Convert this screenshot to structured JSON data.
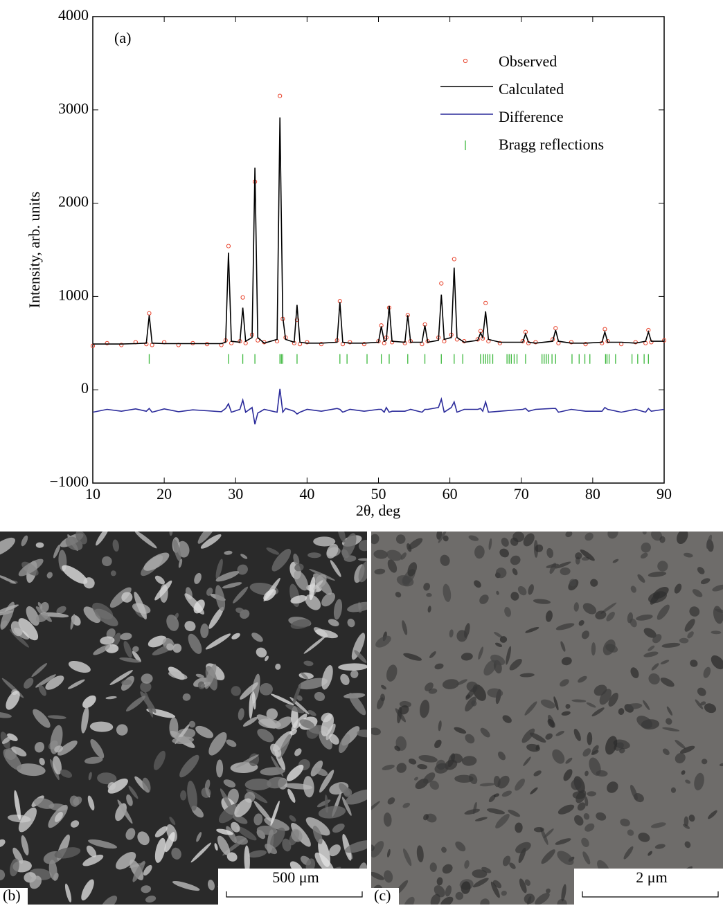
{
  "chart_data": {
    "type": "line",
    "annotations": [
      "(a)"
    ],
    "xlabel": "2θ, deg",
    "ylabel": "Intensity, arb. units",
    "xlim": [
      10,
      90
    ],
    "xticks": [
      10,
      20,
      30,
      40,
      50,
      60,
      70,
      80,
      90
    ],
    "ylim": [
      -1000,
      4000
    ],
    "yticks": [
      {
        "value": -1000,
        "label": "−1000"
      },
      0,
      1000,
      2000,
      3000,
      4000
    ],
    "legend": "upper right",
    "x": [
      10,
      12,
      14,
      16,
      17.5,
      17.9,
      18.3,
      20,
      22,
      24,
      26,
      28,
      28.6,
      29.0,
      29.4,
      30.6,
      31.0,
      31.4,
      32.3,
      32.7,
      33.1,
      34,
      35.8,
      36.2,
      36.6,
      37.0,
      38.2,
      38.6,
      39.0,
      40,
      42,
      44.2,
      44.6,
      45.0,
      46,
      48,
      50.0,
      50.4,
      50.8,
      51.1,
      51.5,
      51.9,
      53.7,
      54.1,
      54.5,
      56.1,
      56.5,
      56.9,
      58.4,
      58.8,
      59.2,
      60.2,
      60.6,
      61.0,
      62,
      63.9,
      64.3,
      64.6,
      65.0,
      65.4,
      67,
      70.2,
      70.6,
      71.0,
      72,
      74.4,
      74.8,
      75.2,
      77,
      79,
      81.3,
      81.7,
      82.1,
      84,
      86,
      87.4,
      87.8,
      88.2,
      90
    ],
    "series": [
      {
        "name": "Observed",
        "color": "#e8432c",
        "style": "markers",
        "values": [
          470,
          500,
          480,
          510,
          490,
          820,
          480,
          510,
          480,
          500,
          490,
          480,
          530,
          1540,
          500,
          520,
          990,
          500,
          590,
          2230,
          530,
          510,
          520,
          3150,
          760,
          560,
          500,
          750,
          490,
          510,
          490,
          530,
          950,
          490,
          510,
          490,
          520,
          690,
          500,
          560,
          880,
          510,
          500,
          800,
          520,
          490,
          700,
          520,
          560,
          1140,
          520,
          590,
          1400,
          540,
          520,
          540,
          630,
          550,
          930,
          520,
          500,
          520,
          620,
          500,
          510,
          540,
          660,
          500,
          510,
          490,
          500,
          650,
          520,
          490,
          510,
          500,
          640,
          510,
          530
        ]
      },
      {
        "name": "Calculated",
        "color": "#000000",
        "style": "line",
        "values": [
          490,
          490,
          490,
          495,
          500,
          800,
          500,
          495,
          495,
          495,
          495,
          495,
          510,
          1470,
          520,
          510,
          880,
          520,
          560,
          2380,
          560,
          500,
          540,
          2920,
          780,
          540,
          510,
          910,
          510,
          500,
          500,
          510,
          940,
          510,
          500,
          500,
          510,
          680,
          520,
          530,
          900,
          520,
          510,
          800,
          510,
          510,
          690,
          510,
          530,
          1020,
          540,
          560,
          1310,
          560,
          510,
          530,
          610,
          560,
          840,
          540,
          510,
          510,
          600,
          510,
          500,
          520,
          640,
          520,
          500,
          500,
          510,
          620,
          510,
          510,
          500,
          520,
          620,
          520,
          520
        ]
      },
      {
        "name": "Difference",
        "color": "#2a2a9a",
        "style": "line",
        "values": [
          -240,
          -210,
          -230,
          -205,
          -230,
          -200,
          -240,
          -205,
          -235,
          -215,
          -225,
          -235,
          -200,
          -150,
          -240,
          -210,
          -110,
          -240,
          -190,
          -370,
          -250,
          -210,
          -240,
          10,
          -240,
          -200,
          -230,
          -260,
          -240,
          -210,
          -230,
          -200,
          -210,
          -240,
          -210,
          -230,
          -210,
          -210,
          -240,
          -190,
          -240,
          -230,
          -230,
          -220,
          -210,
          -240,
          -210,
          -210,
          -190,
          -100,
          -240,
          -190,
          -130,
          -240,
          -210,
          -210,
          -200,
          -230,
          -130,
          -240,
          -230,
          -210,
          -200,
          -230,
          -210,
          -200,
          -200,
          -240,
          -210,
          -230,
          -230,
          -190,
          -210,
          -240,
          -210,
          -240,
          -200,
          -230,
          -210
        ]
      },
      {
        "name": "Bragg reflections",
        "color": "#3cb83c",
        "style": "ticks",
        "x": [
          17.9,
          29.0,
          31.0,
          32.7,
          36.2,
          36.4,
          36.6,
          38.6,
          44.6,
          45.6,
          48.4,
          50.4,
          51.5,
          54.1,
          56.5,
          58.8,
          60.6,
          61.8,
          64.3,
          64.7,
          65.0,
          65.3,
          65.6,
          66.0,
          68.0,
          68.3,
          68.6,
          69.0,
          69.4,
          70.6,
          72.9,
          73.2,
          73.5,
          73.8,
          74.3,
          74.8,
          77.1,
          78.1,
          78.9,
          79.6,
          81.8,
          82.0,
          82.3,
          83.2,
          85.5,
          86.3,
          87.2,
          87.8
        ],
        "values": [
          330,
          330,
          330,
          330,
          330,
          330,
          330,
          330,
          330,
          330,
          330,
          330,
          330,
          330,
          330,
          330,
          330,
          330,
          330,
          330,
          330,
          330,
          330,
          330,
          330,
          330,
          330,
          330,
          330,
          330,
          330,
          330,
          330,
          330,
          330,
          330,
          330,
          330,
          330,
          330,
          330,
          330,
          330,
          330,
          330,
          330,
          330,
          330
        ]
      }
    ]
  },
  "panels": [
    {
      "label": "(b)",
      "scale_bar": "500 μm"
    },
    {
      "label": "(c)",
      "scale_bar": "2 μm"
    }
  ]
}
